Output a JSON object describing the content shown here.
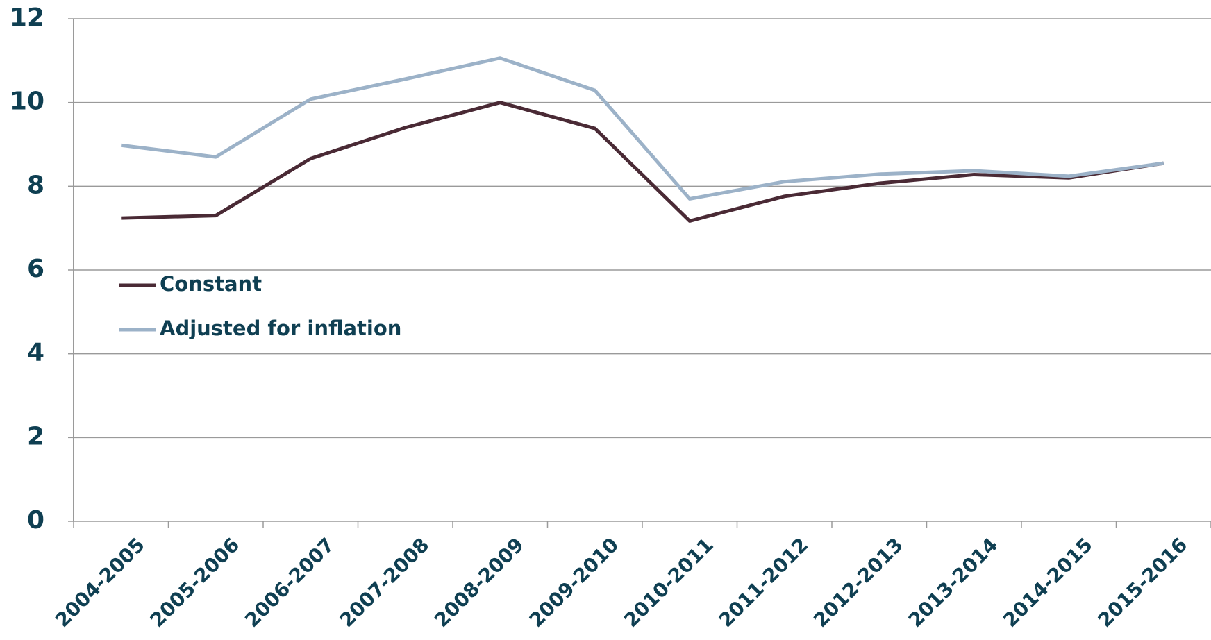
{
  "chart_data": {
    "type": "line",
    "categories": [
      "2004-2005",
      "2005-2006",
      "2006-2007",
      "2007-2008",
      "2008-2009",
      "2009-2010",
      "2010-2011",
      "2011-2012",
      "2012-2013",
      "2013-2014",
      "2014-2015",
      "2015-2016"
    ],
    "series": [
      {
        "name": "Constant",
        "color": "#4a2a35",
        "values": [
          7.24,
          7.3,
          8.66,
          9.4,
          10.0,
          9.38,
          7.17,
          7.76,
          8.07,
          8.28,
          8.2,
          8.55
        ]
      },
      {
        "name": "Adjusted for inflation",
        "color": "#9cb2c8",
        "values": [
          8.98,
          8.7,
          10.08,
          10.56,
          11.06,
          10.29,
          7.7,
          8.11,
          8.29,
          8.37,
          8.24,
          8.55
        ]
      }
    ],
    "ylim": [
      0,
      12
    ],
    "yticks": [
      0,
      2,
      4,
      6,
      8,
      10,
      12
    ],
    "grid": true,
    "legend": "left"
  }
}
